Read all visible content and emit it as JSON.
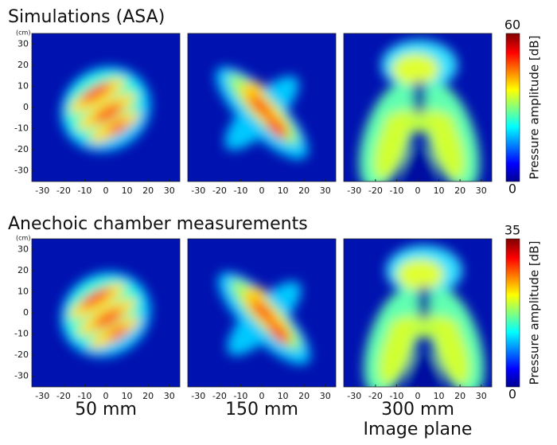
{
  "rows": [
    {
      "title": "Simulations (ASA)",
      "colorbar": {
        "max": 60,
        "min": 0,
        "label": "Pressure amplitude [dB]"
      }
    },
    {
      "title": "Anechoic chamber measurements",
      "colorbar": {
        "max": 35,
        "min": 0,
        "label": "Pressure amplitude [dB]"
      }
    }
  ],
  "columns": [
    {
      "label": "50 mm"
    },
    {
      "label": "150 mm"
    },
    {
      "label": "300 mm"
    }
  ],
  "image_plane_label": "Image plane",
  "axis": {
    "unit": "(cm)",
    "lim": [
      -35,
      35
    ],
    "ticks": [
      -30,
      -20,
      -10,
      0,
      10,
      20,
      30
    ]
  }
}
